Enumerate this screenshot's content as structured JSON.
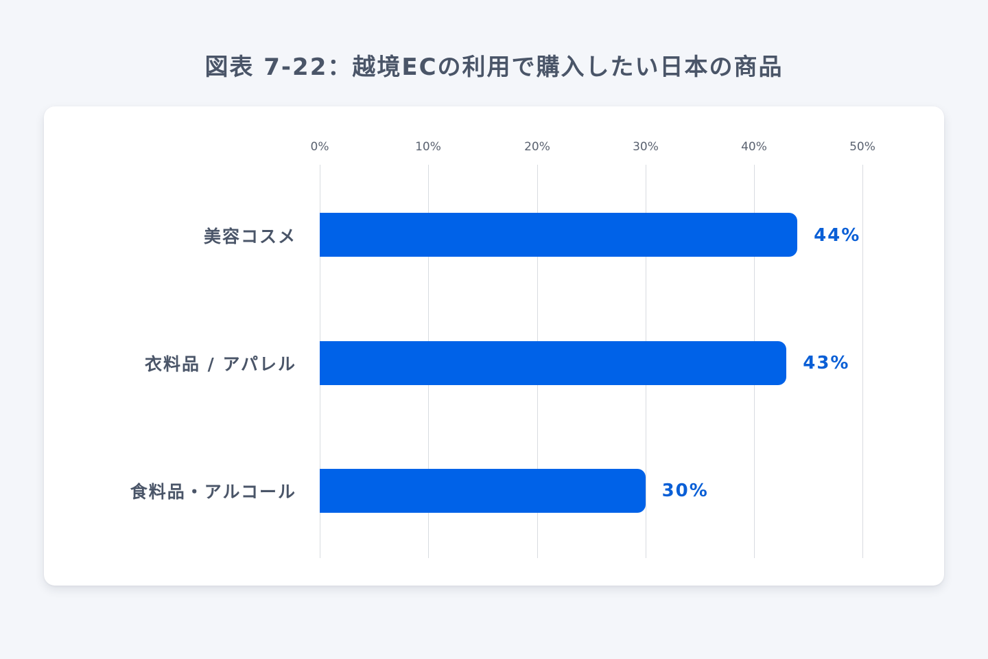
{
  "title": "図表 7-22：越境ECの利用で購入したい日本の商品",
  "colors": {
    "bar": "#0062e8",
    "value_label": "#0a5fd6",
    "text": "#4a5568",
    "background": "#f4f6fa",
    "card": "#ffffff"
  },
  "axis": {
    "ticks": [
      "0%",
      "10%",
      "20%",
      "30%",
      "40%",
      "50%"
    ]
  },
  "bars": [
    {
      "label": "美容コスメ",
      "value": 44,
      "value_label": "44%"
    },
    {
      "label": "衣料品 / アパレル",
      "value": 43,
      "value_label": "43%"
    },
    {
      "label": "食料品・アルコール",
      "value": 30,
      "value_label": "30%"
    }
  ],
  "chart_data": {
    "type": "bar",
    "orientation": "horizontal",
    "title": "図表 7-22：越境ECの利用で購入したい日本の商品",
    "categories": [
      "美容コスメ",
      "衣料品 / アパレル",
      "食料品・アルコール"
    ],
    "values": [
      44,
      43,
      30
    ],
    "data_labels": [
      "44%",
      "43%",
      "30%"
    ],
    "xlabel": "",
    "ylabel": "",
    "xlim": [
      0,
      50
    ],
    "x_ticks": [
      "0%",
      "10%",
      "20%",
      "30%",
      "40%",
      "50%"
    ],
    "x_axis_position": "top",
    "grid": true,
    "legend": null
  }
}
